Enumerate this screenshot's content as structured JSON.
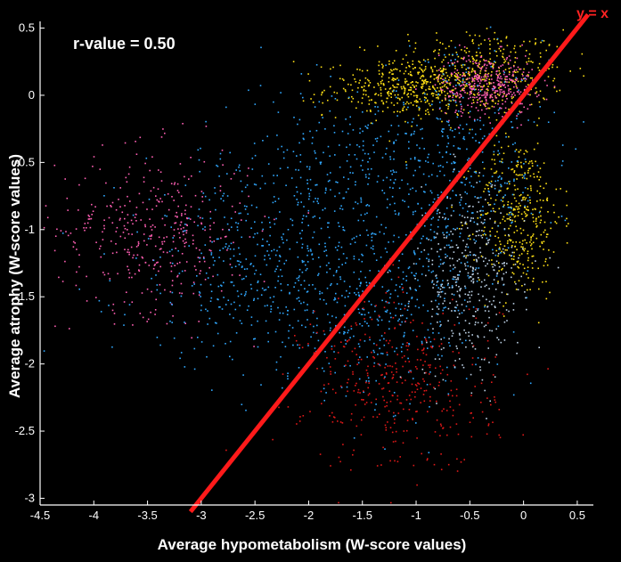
{
  "chart_data": {
    "type": "scatter",
    "xlabel": "Average hypometabolism (W-score values)",
    "ylabel": "Average atrophy (W-score values)",
    "xlim": [
      -4.5,
      0.65
    ],
    "ylim": [
      -3.05,
      0.55
    ],
    "x_ticks": [
      "-4.5",
      "-4",
      "-3.5",
      "-3",
      "-2.5",
      "-2",
      "-1.5",
      "-1",
      "-0.5",
      "0",
      "0.5"
    ],
    "y_ticks": [
      "0.5",
      "0",
      "-0.5",
      "-1",
      "-1.5",
      "-2",
      "-2.5",
      "-3"
    ],
    "annotation": "r-value = 0.50",
    "reference_line": {
      "label": "y = x",
      "color": "#ff1a1a",
      "points": [
        [
          -3.1,
          -3.1
        ],
        [
          0.6,
          0.6
        ]
      ]
    },
    "grid": false,
    "background": "#000000",
    "series": [
      {
        "color": "#ffe014",
        "clusters": [
          {
            "cx": -0.45,
            "cy": 0.18,
            "sx": 0.42,
            "sy": 0.16
          },
          {
            "cx": -1.05,
            "cy": 0.05,
            "sx": 0.4,
            "sy": 0.1
          },
          {
            "cx": -0.05,
            "cy": -0.9,
            "sx": 0.2,
            "sy": 0.3
          }
        ]
      },
      {
        "color": "#ff5fb4",
        "clusters": [
          {
            "cx": -3.45,
            "cy": -1.0,
            "sx": 0.45,
            "sy": 0.3
          },
          {
            "cx": -0.35,
            "cy": 0.08,
            "sx": 0.22,
            "sy": 0.12
          }
        ]
      },
      {
        "color": "#30a8ff",
        "clusters": [
          {
            "cx": -1.6,
            "cy": -0.6,
            "sx": 0.75,
            "sy": 0.35
          },
          {
            "cx": -2.5,
            "cy": -1.3,
            "sx": 0.65,
            "sy": 0.35
          },
          {
            "cx": -0.6,
            "cy": -0.6,
            "sx": 0.4,
            "sy": 0.45
          },
          {
            "cx": -1.4,
            "cy": -1.6,
            "sx": 0.5,
            "sy": 0.3
          }
        ]
      },
      {
        "color": "#e01818",
        "clusters": [
          {
            "cx": -1.15,
            "cy": -2.15,
            "sx": 0.45,
            "sy": 0.33
          }
        ]
      },
      {
        "color": "#bcd0e4",
        "clusters": [
          {
            "cx": -0.5,
            "cy": -1.4,
            "sx": 0.25,
            "sy": 0.35
          }
        ]
      }
    ]
  }
}
